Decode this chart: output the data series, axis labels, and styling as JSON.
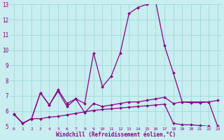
{
  "xlabel": "Windchill (Refroidissement éolien,°C)",
  "background_color": "#c8eef0",
  "grid_color": "#a0d8d8",
  "line_color": "#880088",
  "xlim": [
    -0.5,
    23.5
  ],
  "ylim": [
    5,
    13
  ],
  "series": [
    {
      "x": [
        0,
        1,
        2,
        3,
        4,
        5,
        6,
        7,
        8,
        9,
        10,
        11,
        12,
        13,
        14,
        15,
        16,
        17,
        18,
        19,
        20,
        21,
        22,
        23
      ],
      "y": [
        5.8,
        5.2,
        5.5,
        7.2,
        6.4,
        7.4,
        6.5,
        6.8,
        6.5,
        9.8,
        7.6,
        8.3,
        9.8,
        12.4,
        12.8,
        13.0,
        13.2,
        10.3,
        8.5,
        6.6,
        6.6,
        6.6,
        6.6,
        5.0
      ]
    },
    {
      "x": [
        0,
        1,
        2,
        3,
        4,
        5,
        6,
        7,
        8,
        9,
        10,
        11,
        12,
        13,
        14,
        15,
        16,
        17,
        18,
        19,
        20,
        21,
        22,
        23
      ],
      "y": [
        5.8,
        5.2,
        5.5,
        7.2,
        6.4,
        7.3,
        6.3,
        6.8,
        5.9,
        6.5,
        6.3,
        6.4,
        6.5,
        6.6,
        6.6,
        6.7,
        6.8,
        6.9,
        6.5,
        6.6,
        6.55,
        6.55,
        6.6,
        6.7
      ]
    },
    {
      "x": [
        0,
        1,
        2,
        3,
        4,
        5,
        6,
        7,
        8,
        9,
        10,
        11,
        12,
        13,
        14,
        15,
        16,
        17,
        18,
        19,
        20,
        21,
        22,
        23
      ],
      "y": [
        5.8,
        5.2,
        5.5,
        5.5,
        5.6,
        5.65,
        5.75,
        5.85,
        5.95,
        6.05,
        6.1,
        6.15,
        6.2,
        6.25,
        6.3,
        6.35,
        6.4,
        6.45,
        5.2,
        5.1,
        5.1,
        5.05,
        5.0,
        4.9
      ]
    }
  ]
}
